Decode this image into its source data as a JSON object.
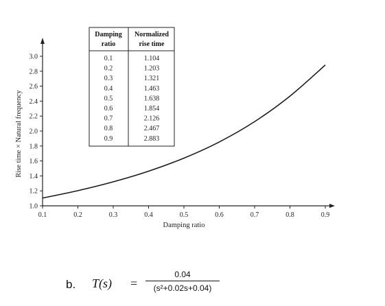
{
  "chart_data": {
    "type": "line",
    "xlabel": "Damping ratio",
    "ylabel": "Rise time × Natural frequency",
    "xlim": [
      0.1,
      0.9
    ],
    "ylim": [
      1.0,
      3.0
    ],
    "x_ticks": [
      "0.1",
      "0.2",
      "0.3",
      "0.4",
      "0.5",
      "0.6",
      "0.7",
      "0.8",
      "0.9"
    ],
    "y_ticks": [
      "1.0",
      "1.2",
      "1.4",
      "1.6",
      "1.8",
      "2.0",
      "2.2",
      "2.4",
      "2.6",
      "2.8",
      "3.0"
    ],
    "x": [
      0.1,
      0.2,
      0.3,
      0.4,
      0.5,
      0.6,
      0.7,
      0.8,
      0.9
    ],
    "y": [
      1.104,
      1.203,
      1.321,
      1.463,
      1.638,
      1.854,
      2.126,
      2.467,
      2.883
    ],
    "grid": false,
    "inset_table": {
      "headers": [
        [
          "Damping",
          "ratio"
        ],
        [
          "Normalized",
          "rise time"
        ]
      ],
      "rows": [
        [
          "0.1",
          "1.104"
        ],
        [
          "0.2",
          "1.203"
        ],
        [
          "0.3",
          "1.321"
        ],
        [
          "0.4",
          "1.463"
        ],
        [
          "0.5",
          "1.638"
        ],
        [
          "0.6",
          "1.854"
        ],
        [
          "0.7",
          "2.126"
        ],
        [
          "0.8",
          "2.467"
        ],
        [
          "0.9",
          "2.883"
        ]
      ]
    }
  },
  "formula": {
    "item": "b.",
    "lhs": "T(s)",
    "equals": "=",
    "numerator": "0.04",
    "denominator": "(s²+0.02s+0.04)"
  }
}
